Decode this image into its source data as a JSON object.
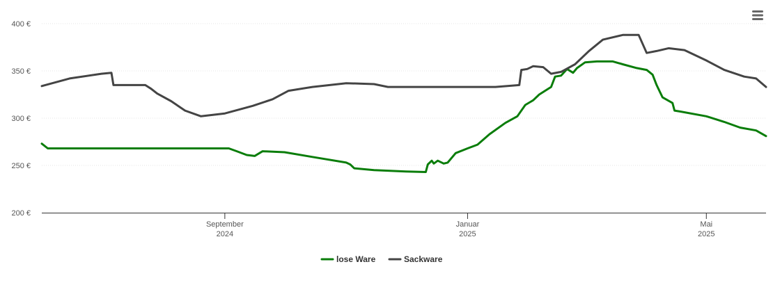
{
  "chart_data": {
    "type": "line",
    "ylim": [
      200,
      400
    ],
    "y_ticks": [
      {
        "value": 400,
        "label": "400 €"
      },
      {
        "value": 350,
        "label": "350 €"
      },
      {
        "value": 300,
        "label": "300 €"
      },
      {
        "value": 250,
        "label": "250 €"
      },
      {
        "value": 200,
        "label": "200 €"
      }
    ],
    "xlim": [
      "2024-06-01",
      "2025-05-31"
    ],
    "x_ticks": [
      {
        "date": "2024-09-01",
        "line1": "September",
        "line2": "2024"
      },
      {
        "date": "2025-01-01",
        "line1": "Januar",
        "line2": "2025"
      },
      {
        "date": "2025-05-01",
        "line1": "Mai",
        "line2": "2025"
      }
    ],
    "grid": true,
    "legend_position": "bottom-center",
    "series": [
      {
        "name": "lose Ware",
        "color": "#0a7d0a",
        "points": [
          [
            "2024-06-01",
            273
          ],
          [
            "2024-06-04",
            268
          ],
          [
            "2024-06-10",
            268
          ],
          [
            "2024-07-01",
            268
          ],
          [
            "2024-08-01",
            268
          ],
          [
            "2024-08-30",
            268
          ],
          [
            "2024-09-03",
            268
          ],
          [
            "2024-09-07",
            265
          ],
          [
            "2024-09-12",
            261
          ],
          [
            "2024-09-16",
            260
          ],
          [
            "2024-09-20",
            265
          ],
          [
            "2024-10-01",
            264
          ],
          [
            "2024-10-15",
            259
          ],
          [
            "2024-11-01",
            253
          ],
          [
            "2024-11-03",
            251
          ],
          [
            "2024-11-05",
            247
          ],
          [
            "2024-11-15",
            245
          ],
          [
            "2024-12-01",
            243.5
          ],
          [
            "2024-12-11",
            243
          ],
          [
            "2024-12-12",
            251
          ],
          [
            "2024-12-14",
            255
          ],
          [
            "2024-12-15",
            252
          ],
          [
            "2024-12-17",
            255
          ],
          [
            "2024-12-20",
            252
          ],
          [
            "2024-12-22",
            253
          ],
          [
            "2024-12-26",
            263
          ],
          [
            "2025-01-01",
            268
          ],
          [
            "2025-01-06",
            272
          ],
          [
            "2025-01-12",
            283
          ],
          [
            "2025-01-20",
            295
          ],
          [
            "2025-01-26",
            302
          ],
          [
            "2025-01-30",
            314
          ],
          [
            "2025-02-03",
            319
          ],
          [
            "2025-02-06",
            325
          ],
          [
            "2025-02-12",
            333
          ],
          [
            "2025-02-14",
            344
          ],
          [
            "2025-02-17",
            345
          ],
          [
            "2025-02-20",
            352
          ],
          [
            "2025-02-23",
            348
          ],
          [
            "2025-02-25",
            353
          ],
          [
            "2025-03-01",
            359
          ],
          [
            "2025-03-07",
            360
          ],
          [
            "2025-03-15",
            360
          ],
          [
            "2025-03-20",
            357
          ],
          [
            "2025-03-27",
            353
          ],
          [
            "2025-04-01",
            351
          ],
          [
            "2025-04-04",
            346
          ],
          [
            "2025-04-06",
            335
          ],
          [
            "2025-04-09",
            322
          ],
          [
            "2025-04-14",
            316
          ],
          [
            "2025-04-15",
            308
          ],
          [
            "2025-04-18",
            307
          ],
          [
            "2025-05-01",
            302
          ],
          [
            "2025-05-10",
            296
          ],
          [
            "2025-05-18",
            290
          ],
          [
            "2025-05-26",
            287
          ],
          [
            "2025-05-31",
            281
          ]
        ]
      },
      {
        "name": "Sackware",
        "color": "#444444",
        "points": [
          [
            "2024-06-01",
            334
          ],
          [
            "2024-06-15",
            342
          ],
          [
            "2024-07-01",
            347
          ],
          [
            "2024-07-06",
            348
          ],
          [
            "2024-07-07",
            335
          ],
          [
            "2024-07-15",
            335
          ],
          [
            "2024-07-23",
            335
          ],
          [
            "2024-07-26",
            331
          ],
          [
            "2024-07-29",
            326
          ],
          [
            "2024-08-05",
            318
          ],
          [
            "2024-08-12",
            308
          ],
          [
            "2024-08-20",
            302
          ],
          [
            "2024-09-01",
            305
          ],
          [
            "2024-09-15",
            313
          ],
          [
            "2024-09-25",
            320
          ],
          [
            "2024-10-03",
            329
          ],
          [
            "2024-10-15",
            333
          ],
          [
            "2024-11-01",
            337
          ],
          [
            "2024-11-15",
            336
          ],
          [
            "2024-11-22",
            333
          ],
          [
            "2024-12-15",
            333
          ],
          [
            "2025-01-15",
            333
          ],
          [
            "2025-01-27",
            335
          ],
          [
            "2025-01-28",
            351
          ],
          [
            "2025-01-31",
            352
          ],
          [
            "2025-02-03",
            355
          ],
          [
            "2025-02-08",
            354
          ],
          [
            "2025-02-12",
            347
          ],
          [
            "2025-02-17",
            349
          ],
          [
            "2025-02-24",
            357
          ],
          [
            "2025-03-03",
            371
          ],
          [
            "2025-03-10",
            383
          ],
          [
            "2025-03-20",
            388
          ],
          [
            "2025-03-28",
            388
          ],
          [
            "2025-04-01",
            369
          ],
          [
            "2025-04-06",
            371
          ],
          [
            "2025-04-12",
            374
          ],
          [
            "2025-04-20",
            372
          ],
          [
            "2025-05-01",
            361
          ],
          [
            "2025-05-10",
            351
          ],
          [
            "2025-05-20",
            344
          ],
          [
            "2025-05-26",
            342
          ],
          [
            "2025-05-31",
            333
          ]
        ]
      }
    ]
  },
  "toolbar": {
    "menu_icon": "hamburger-menu-icon"
  }
}
